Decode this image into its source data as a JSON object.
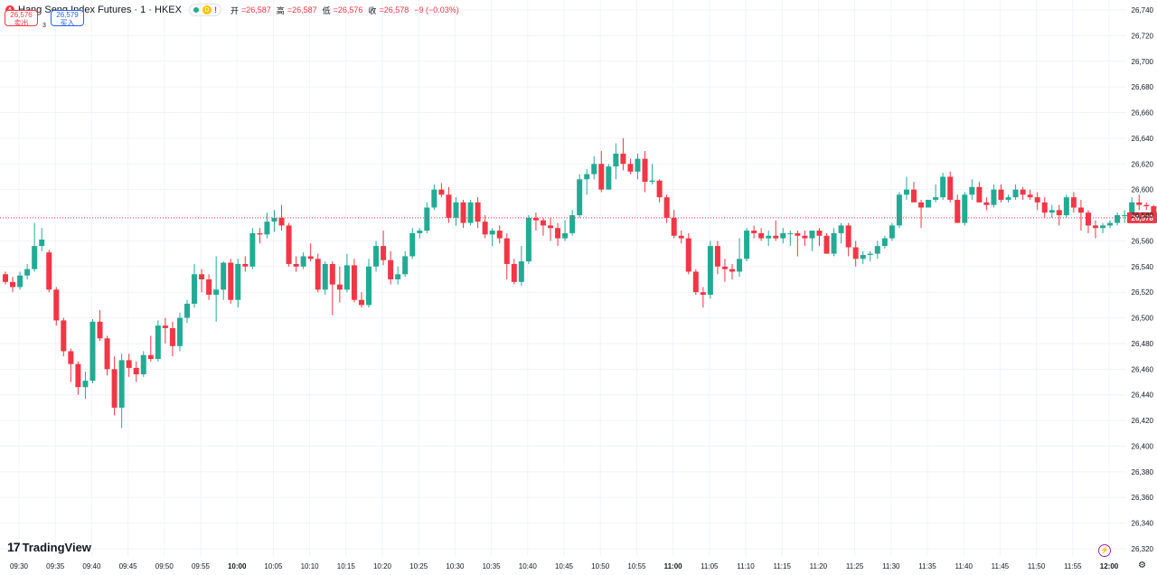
{
  "header": {
    "symbol_icon": "A",
    "title": "Hang Seng Index Futures · 1 · HKEX",
    "badge_d": "D",
    "badge_warn": "!",
    "ohlc": [
      {
        "key": "开",
        "value": "=26,587"
      },
      {
        "key": "高",
        "value": "=26,587"
      },
      {
        "key": "低",
        "value": "=26,576"
      },
      {
        "key": "收",
        "value": "=26,578"
      },
      {
        "key": "",
        "value": "−9 (−0.03%)"
      }
    ]
  },
  "trade": {
    "sell_price": "26,576",
    "sell_label": "卖出",
    "spread": "3",
    "buy_price": "26,579",
    "buy_label": "买入"
  },
  "logo": {
    "mark": "17",
    "text": "TradingView"
  },
  "icons": {
    "bolt": "lightning-icon",
    "settings": "gear-icon"
  },
  "colors": {
    "up": "#22ab94",
    "down": "#f23645",
    "last_price": "#f23645"
  },
  "chart_data": {
    "type": "candlestick",
    "interval_minutes": 1,
    "y_axis_ticks": [
      "26,740",
      "26,720",
      "26,700",
      "26,680",
      "26,660",
      "26,640",
      "26,620",
      "26,600",
      "26,580",
      "26,560",
      "26,540",
      "26,520",
      "26,500",
      "26,480",
      "26,460",
      "26,440",
      "26,420",
      "26,400",
      "26,380",
      "26,360",
      "26,340",
      "26,320"
    ],
    "ylim": [
      26320,
      26745
    ],
    "x_axis_ticks": [
      {
        "label": "09:30",
        "bold": false
      },
      {
        "label": "09:35",
        "bold": false
      },
      {
        "label": "09:40",
        "bold": false
      },
      {
        "label": "09:45",
        "bold": false
      },
      {
        "label": "09:50",
        "bold": false
      },
      {
        "label": "09:55",
        "bold": false
      },
      {
        "label": "10:00",
        "bold": true
      },
      {
        "label": "10:05",
        "bold": false
      },
      {
        "label": "10:10",
        "bold": false
      },
      {
        "label": "10:15",
        "bold": false
      },
      {
        "label": "10:20",
        "bold": false
      },
      {
        "label": "10:25",
        "bold": false
      },
      {
        "label": "10:30",
        "bold": false
      },
      {
        "label": "10:35",
        "bold": false
      },
      {
        "label": "10:40",
        "bold": false
      },
      {
        "label": "10:45",
        "bold": false
      },
      {
        "label": "10:50",
        "bold": false
      },
      {
        "label": "10:55",
        "bold": false
      },
      {
        "label": "11:00",
        "bold": true
      },
      {
        "label": "11:05",
        "bold": false
      },
      {
        "label": "11:10",
        "bold": false
      },
      {
        "label": "11:15",
        "bold": false
      },
      {
        "label": "11:20",
        "bold": false
      },
      {
        "label": "11:25",
        "bold": false
      },
      {
        "label": "11:30",
        "bold": false
      },
      {
        "label": "11:35",
        "bold": false
      },
      {
        "label": "11:40",
        "bold": false
      },
      {
        "label": "11:45",
        "bold": false
      },
      {
        "label": "11:50",
        "bold": false
      },
      {
        "label": "11:55",
        "bold": false
      },
      {
        "label": "12:00",
        "bold": true
      }
    ],
    "last_price": 26578,
    "last_price_label": "26,578",
    "candles": [
      [
        26534,
        26536,
        26526,
        26528
      ],
      [
        26528,
        26532,
        26520,
        26524
      ],
      [
        26524,
        26536,
        26522,
        26533
      ],
      [
        26533,
        26542,
        26530,
        26538
      ],
      [
        26538,
        26574,
        26536,
        26556
      ],
      [
        26556,
        26570,
        26552,
        26561
      ],
      [
        26551,
        26553,
        26520,
        26522
      ],
      [
        26522,
        26524,
        26494,
        26498
      ],
      [
        26498,
        26500,
        26470,
        26474
      ],
      [
        26474,
        26476,
        26450,
        26464
      ],
      [
        26464,
        26466,
        26440,
        26446
      ],
      [
        26446,
        26458,
        26437,
        26451
      ],
      [
        26451,
        26499,
        26449,
        26497
      ],
      [
        26497,
        26506,
        26482,
        26484
      ],
      [
        26484,
        26486,
        26455,
        26460
      ],
      [
        26460,
        26470,
        26424,
        26430
      ],
      [
        26430,
        26472,
        26414,
        26467
      ],
      [
        26467,
        26472,
        26454,
        26461
      ],
      [
        26461,
        26466,
        26450,
        26456
      ],
      [
        26456,
        26474,
        26454,
        26471
      ],
      [
        26471,
        26486,
        26466,
        26468
      ],
      [
        26468,
        26498,
        26466,
        26494
      ],
      [
        26494,
        26500,
        26480,
        26492
      ],
      [
        26492,
        26497,
        26470,
        26478
      ],
      [
        26478,
        26504,
        26474,
        26500
      ],
      [
        26500,
        26514,
        26496,
        26511
      ],
      [
        26511,
        26542,
        26508,
        26534
      ],
      [
        26534,
        26538,
        26520,
        26530
      ],
      [
        26530,
        26534,
        26514,
        26518
      ],
      [
        26518,
        26548,
        26497,
        26522
      ],
      [
        26522,
        26544,
        26514,
        26543
      ],
      [
        26543,
        26546,
        26511,
        26514
      ],
      [
        26514,
        26546,
        26508,
        26542
      ],
      [
        26542,
        26548,
        26536,
        26540
      ],
      [
        26540,
        26570,
        26538,
        26566
      ],
      [
        26566,
        26570,
        26558,
        26565
      ],
      [
        26565,
        26582,
        26562,
        26575
      ],
      [
        26575,
        26584,
        26567,
        26578
      ],
      [
        26578,
        26588,
        26568,
        26572
      ],
      [
        26572,
        26574,
        26540,
        26542
      ],
      [
        26542,
        26548,
        26536,
        26540
      ],
      [
        26540,
        26551,
        26538,
        26548
      ],
      [
        26548,
        26558,
        26544,
        26546
      ],
      [
        26546,
        26550,
        26520,
        26522
      ],
      [
        26522,
        26544,
        26518,
        26542
      ],
      [
        26542,
        26544,
        26502,
        26526
      ],
      [
        26526,
        26540,
        26512,
        26522
      ],
      [
        26522,
        26550,
        26520,
        26541
      ],
      [
        26541,
        26546,
        26512,
        26514
      ],
      [
        26514,
        26520,
        26508,
        26510
      ],
      [
        26510,
        26546,
        26508,
        26540
      ],
      [
        26540,
        26560,
        26536,
        26556
      ],
      [
        26556,
        26568,
        26541,
        26545
      ],
      [
        26545,
        26552,
        26526,
        26530
      ],
      [
        26530,
        26540,
        26526,
        26534
      ],
      [
        26534,
        26552,
        26532,
        26548
      ],
      [
        26548,
        26570,
        26546,
        26566
      ],
      [
        26566,
        26570,
        26562,
        26568
      ],
      [
        26568,
        26590,
        26566,
        26586
      ],
      [
        26586,
        26604,
        26584,
        26600
      ],
      [
        26600,
        26605,
        26594,
        26596
      ],
      [
        26596,
        26602,
        26574,
        26578
      ],
      [
        26578,
        26594,
        26572,
        26590
      ],
      [
        26590,
        26592,
        26570,
        26574
      ],
      [
        26574,
        26592,
        26572,
        26590
      ],
      [
        26590,
        26594,
        26570,
        26575
      ],
      [
        26575,
        26580,
        26562,
        26565
      ],
      [
        26565,
        26570,
        26556,
        26568
      ],
      [
        26568,
        26572,
        26558,
        26562
      ],
      [
        26562,
        26566,
        26530,
        26542
      ],
      [
        26542,
        26546,
        26526,
        26528
      ],
      [
        26528,
        26556,
        26525,
        26544
      ],
      [
        26544,
        26580,
        26542,
        26578
      ],
      [
        26578,
        26582,
        26568,
        26576
      ],
      [
        26576,
        26578,
        26564,
        26572
      ],
      [
        26572,
        26578,
        26560,
        26570
      ],
      [
        26570,
        26574,
        26556,
        26562
      ],
      [
        26562,
        26576,
        26560,
        26566
      ],
      [
        26566,
        26584,
        26564,
        26580
      ],
      [
        26580,
        26612,
        26578,
        26608
      ],
      [
        26608,
        26616,
        26596,
        26612
      ],
      [
        26612,
        26626,
        26608,
        26620
      ],
      [
        26620,
        26630,
        26598,
        26600
      ],
      [
        26600,
        26620,
        26600,
        26618
      ],
      [
        26618,
        26636,
        26608,
        26628
      ],
      [
        26628,
        26640,
        26615,
        26620
      ],
      [
        26620,
        26624,
        26612,
        26614
      ],
      [
        26614,
        26628,
        26608,
        26624
      ],
      [
        26624,
        26630,
        26598,
        26606
      ],
      [
        26606,
        26620,
        26604,
        26607
      ],
      [
        26607,
        26608,
        26590,
        26594
      ],
      [
        26594,
        26596,
        26574,
        26578
      ],
      [
        26578,
        26584,
        26562,
        26564
      ],
      [
        26564,
        26568,
        26558,
        26562
      ],
      [
        26562,
        26566,
        26534,
        26536
      ],
      [
        26536,
        26538,
        26518,
        26520
      ],
      [
        26520,
        26524,
        26508,
        26518
      ],
      [
        26518,
        26560,
        26515,
        26556
      ],
      [
        26556,
        26560,
        26534,
        26540
      ],
      [
        26540,
        26546,
        26528,
        26538
      ],
      [
        26538,
        26542,
        26530,
        26536
      ],
      [
        26536,
        26562,
        26532,
        26546
      ],
      [
        26546,
        26570,
        26544,
        26568
      ],
      [
        26568,
        26572,
        26562,
        26566
      ],
      [
        26566,
        26570,
        26560,
        26562
      ],
      [
        26562,
        26568,
        26556,
        26564
      ],
      [
        26564,
        26576,
        26560,
        26562
      ],
      [
        26562,
        26570,
        26558,
        26566
      ],
      [
        26566,
        26568,
        26556,
        26566
      ],
      [
        26566,
        26568,
        26548,
        26564
      ],
      [
        26564,
        26568,
        26556,
        26562
      ],
      [
        26562,
        26568,
        26552,
        26568
      ],
      [
        26568,
        26570,
        26556,
        26564
      ],
      [
        26564,
        26566,
        26554,
        26550
      ],
      [
        26550,
        26570,
        26548,
        26566
      ],
      [
        26566,
        26574,
        26558,
        26572
      ],
      [
        26572,
        26574,
        26548,
        26555
      ],
      [
        26555,
        26560,
        26540,
        26546
      ],
      [
        26546,
        26552,
        26542,
        26549
      ],
      [
        26549,
        26552,
        26544,
        26550
      ],
      [
        26550,
        26560,
        26546,
        26556
      ],
      [
        26556,
        26564,
        26554,
        26562
      ],
      [
        26562,
        26574,
        26560,
        26572
      ],
      [
        26572,
        26598,
        26570,
        26596
      ],
      [
        26596,
        26610,
        26592,
        26600
      ],
      [
        26600,
        26606,
        26594,
        26590
      ],
      [
        26590,
        26592,
        26570,
        26586
      ],
      [
        26586,
        26590,
        26586,
        26592
      ],
      [
        26592,
        26604,
        26590,
        26594
      ],
      [
        26594,
        26613,
        26592,
        26610
      ],
      [
        26610,
        26614,
        26590,
        26592
      ],
      [
        26592,
        26596,
        26574,
        26574
      ],
      [
        26574,
        26598,
        26572,
        26596
      ],
      [
        26596,
        26608,
        26592,
        26602
      ],
      [
        26602,
        26606,
        26590,
        26590
      ],
      [
        26590,
        26594,
        26584,
        26588
      ],
      [
        26588,
        26604,
        26586,
        26600
      ],
      [
        26600,
        26604,
        26590,
        26592
      ],
      [
        26592,
        26596,
        26590,
        26594
      ],
      [
        26594,
        26604,
        26592,
        26600
      ],
      [
        26600,
        26602,
        26592,
        26596
      ],
      [
        26596,
        26600,
        26592,
        26594
      ],
      [
        26594,
        26598,
        26584,
        26590
      ],
      [
        26590,
        26594,
        26578,
        26582
      ],
      [
        26582,
        26588,
        26578,
        26584
      ],
      [
        26584,
        26588,
        26572,
        26580
      ],
      [
        26580,
        26596,
        26578,
        26594
      ],
      [
        26594,
        26598,
        26582,
        26586
      ],
      [
        26586,
        26592,
        26568,
        26582
      ],
      [
        26582,
        26584,
        26566,
        26572
      ],
      [
        26572,
        26576,
        26562,
        26570
      ],
      [
        26570,
        26574,
        26566,
        26572
      ],
      [
        26572,
        26576,
        26570,
        26574
      ],
      [
        26574,
        26582,
        26572,
        26580
      ],
      [
        26580,
        26584,
        26574,
        26580
      ],
      [
        26580,
        26594,
        26578,
        26590
      ],
      [
        26590,
        26596,
        26584,
        26588
      ],
      [
        26588,
        26590,
        26584,
        26587
      ],
      [
        26587,
        26588,
        26576,
        26578
      ]
    ]
  }
}
